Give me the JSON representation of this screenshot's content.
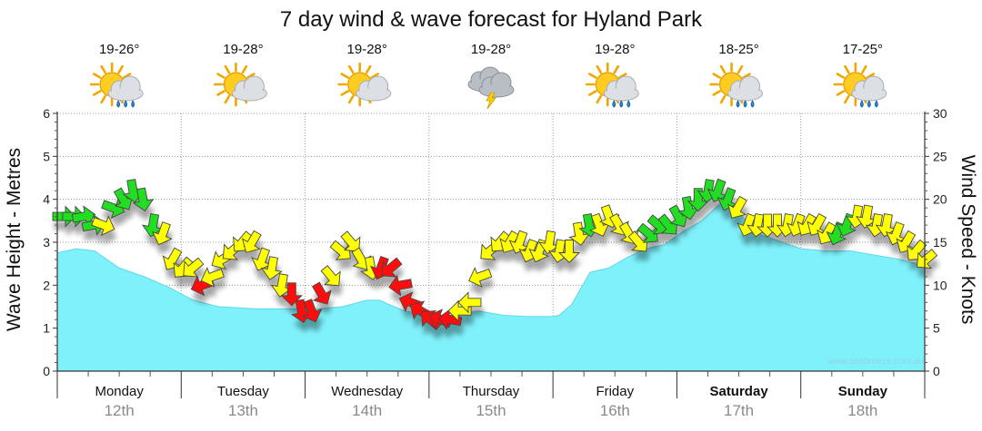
{
  "title": "7 day wind & wave forecast for Hyland Park",
  "watermark": "www.seabreeze.com.au",
  "colors": {
    "wave_fill": "#7ff1fb",
    "wave_edge": "#5fd8e8",
    "light": "#ffff00",
    "moderate": "#22dd22",
    "strong": "#ff1111",
    "grid": "#999999"
  },
  "days": [
    {
      "day": "Monday",
      "date": "12th",
      "temp": "19-26°",
      "icon": "sun-cloud-rain-icon",
      "bold": false
    },
    {
      "day": "Tuesday",
      "date": "13th",
      "temp": "19-28°",
      "icon": "sun-cloud-icon",
      "bold": false
    },
    {
      "day": "Wednesday",
      "date": "14th",
      "temp": "19-28°",
      "icon": "sun-cloud-icon",
      "bold": false
    },
    {
      "day": "Thursday",
      "date": "15th",
      "temp": "19-28°",
      "icon": "storm-cloud-icon",
      "bold": false
    },
    {
      "day": "Friday",
      "date": "16th",
      "temp": "19-28°",
      "icon": "sun-cloud-rain-icon",
      "bold": false
    },
    {
      "day": "Saturday",
      "date": "17th",
      "temp": "18-25°",
      "icon": "sun-cloud-rain-icon",
      "bold": true
    },
    {
      "day": "Sunday",
      "date": "18th",
      "temp": "17-25°",
      "icon": "sun-cloud-rain-icon",
      "bold": true
    }
  ],
  "chart_data": {
    "type": "area",
    "title": "7 day wind & wave forecast for Hyland Park",
    "ylabel_left": "Wave Height - Metres",
    "ylabel_right": "Wind Speed - Knots",
    "ylim_left": [
      0,
      6
    ],
    "ylim_right": [
      0,
      30
    ],
    "yticks_left": [
      "0",
      "1",
      "2",
      "3",
      "4",
      "5",
      "6"
    ],
    "yticks_right": [
      "0",
      "5",
      "10",
      "15",
      "20",
      "25",
      "30"
    ],
    "x_unit": "day index 0-7",
    "wave_height": {
      "name": "Wave Height (m)",
      "x": [
        0,
        0.15,
        0.3,
        0.5,
        0.7,
        0.9,
        1.1,
        1.3,
        1.6,
        1.9,
        2.1,
        2.3,
        2.5,
        2.6,
        2.8,
        3.0,
        3.2,
        3.4,
        3.6,
        3.8,
        4.0,
        4.05,
        4.15,
        4.3,
        4.45,
        4.6,
        4.75,
        4.9,
        5.05,
        5.2,
        5.35,
        5.5,
        5.65,
        5.8,
        6.0,
        6.2,
        6.4,
        6.6,
        6.8,
        7.0
      ],
      "values": [
        2.75,
        2.85,
        2.8,
        2.4,
        2.2,
        1.95,
        1.65,
        1.5,
        1.45,
        1.45,
        1.45,
        1.5,
        1.65,
        1.65,
        1.4,
        1.3,
        1.3,
        1.4,
        1.3,
        1.27,
        1.27,
        1.3,
        1.55,
        2.3,
        2.4,
        2.65,
        2.85,
        2.95,
        3.25,
        3.5,
        3.9,
        3.7,
        3.2,
        3.05,
        2.85,
        2.8,
        2.8,
        2.7,
        2.6,
        2.45
      ]
    },
    "wind": {
      "name": "Wind Speed (knots)",
      "x": [
        0.0,
        0.08,
        0.16,
        0.24,
        0.32,
        0.4,
        0.48,
        0.56,
        0.64,
        0.72,
        0.8,
        0.88,
        0.96,
        1.04,
        1.12,
        1.2,
        1.28,
        1.36,
        1.44,
        1.52,
        1.6,
        1.68,
        1.76,
        1.84,
        1.92,
        2.0,
        2.08,
        2.16,
        2.24,
        2.32,
        2.4,
        2.48,
        2.56,
        2.64,
        2.72,
        2.8,
        2.88,
        2.96,
        3.04,
        3.12,
        3.2,
        3.28,
        3.36,
        3.44,
        3.52,
        3.6,
        3.68,
        3.76,
        3.84,
        3.92,
        4.0,
        4.08,
        4.16,
        4.24,
        4.32,
        4.4,
        4.48,
        4.56,
        4.64,
        4.72,
        4.8,
        4.88,
        4.96,
        5.04,
        5.12,
        5.2,
        5.28,
        5.36,
        5.44,
        5.52,
        5.6,
        5.68,
        5.76,
        5.84,
        5.92,
        6.0,
        6.08,
        6.16,
        6.24,
        6.32,
        6.4,
        6.48,
        6.56,
        6.64,
        6.72,
        6.8,
        6.88,
        6.96
      ],
      "speed_knots": [
        18,
        18,
        18,
        17,
        17,
        19,
        20,
        21,
        20,
        17,
        16,
        13,
        12,
        12,
        10,
        11,
        13,
        14,
        15,
        15,
        13,
        12,
        10,
        9,
        7,
        7,
        9,
        11,
        14,
        15,
        13,
        12,
        12,
        12,
        10,
        8,
        7,
        6,
        6,
        6,
        7,
        8,
        11,
        14,
        15,
        15,
        15,
        14,
        14,
        15,
        14,
        14,
        16,
        17,
        17,
        18,
        17,
        16,
        15,
        16,
        17,
        17,
        18,
        19,
        20,
        21,
        21,
        20,
        19,
        17,
        17,
        17,
        17,
        17,
        17,
        17,
        17,
        16,
        16,
        17,
        18,
        18,
        17,
        17,
        16,
        15,
        14,
        13
      ],
      "direction_deg": [
        90,
        90,
        80,
        80,
        110,
        110,
        150,
        170,
        170,
        190,
        200,
        210,
        220,
        230,
        250,
        250,
        240,
        230,
        220,
        210,
        200,
        190,
        190,
        180,
        170,
        160,
        150,
        140,
        130,
        140,
        150,
        170,
        200,
        230,
        260,
        290,
        300,
        310,
        290,
        280,
        270,
        270,
        250,
        230,
        220,
        210,
        200,
        200,
        200,
        190,
        190,
        180,
        170,
        170,
        160,
        160,
        150,
        150,
        140,
        130,
        130,
        140,
        150,
        170,
        180,
        190,
        200,
        200,
        210,
        200,
        190,
        180,
        180,
        190,
        200,
        210,
        210,
        210,
        200,
        200,
        190,
        190,
        190,
        190,
        200,
        210,
        220,
        230
      ],
      "strength": [
        "moderate",
        "moderate",
        "moderate",
        "moderate",
        "light",
        "moderate",
        "moderate",
        "moderate",
        "moderate",
        "moderate",
        "light",
        "light",
        "light",
        "light",
        "strong",
        "light",
        "light",
        "light",
        "light",
        "light",
        "light",
        "light",
        "light",
        "strong",
        "strong",
        "strong",
        "strong",
        "light",
        "light",
        "light",
        "light",
        "light",
        "strong",
        "strong",
        "strong",
        "strong",
        "strong",
        "strong",
        "strong",
        "strong",
        "light",
        "light",
        "light",
        "light",
        "light",
        "light",
        "light",
        "light",
        "light",
        "light",
        "light",
        "light",
        "light",
        "moderate",
        "light",
        "light",
        "light",
        "light",
        "light",
        "moderate",
        "moderate",
        "moderate",
        "moderate",
        "moderate",
        "moderate",
        "moderate",
        "moderate",
        "moderate",
        "light",
        "light",
        "light",
        "light",
        "light",
        "light",
        "light",
        "light",
        "light",
        "light",
        "moderate",
        "moderate",
        "light",
        "light",
        "light",
        "light",
        "light",
        "light",
        "light",
        "light"
      ]
    }
  }
}
